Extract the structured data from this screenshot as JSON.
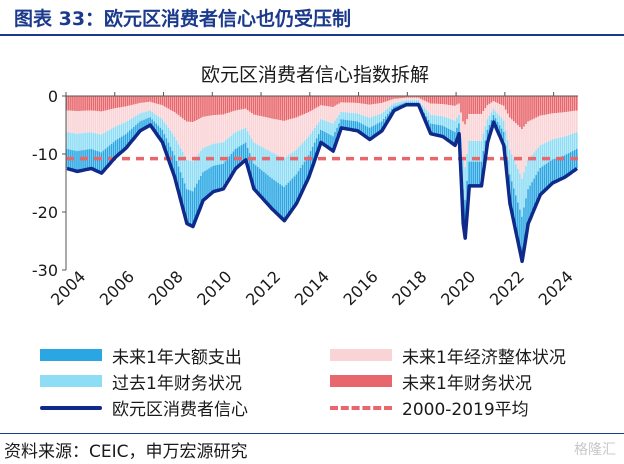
{
  "figure_title": "图表 33：欧元区消费者信心也仍受压制",
  "source": "资料来源：CEIC，申万宏源研究",
  "watermark": "格隆汇",
  "colors": {
    "big_purchase": "#2aa7e3",
    "past_financial": "#8fdcf5",
    "general_economy": "#f9d3d5",
    "future_financial": "#e8676c",
    "confidence": "#0f2a8a",
    "average": "#e8676c"
  },
  "chart_data": {
    "type": "bar",
    "title": "欧元区消费者信心指数拆解",
    "xlabel": "",
    "ylabel": "",
    "ylim": [
      -30,
      0
    ],
    "yticks": [
      0,
      -10,
      -20,
      -30
    ],
    "x_ticks": [
      "2004",
      "2006",
      "2008",
      "2010",
      "2012",
      "2014",
      "2016",
      "2018",
      "2020",
      "2022",
      "2024"
    ],
    "x_range": [
      "2004-01",
      "2024-12"
    ],
    "stacked": true,
    "series": [
      {
        "name": "未来1年大额支出",
        "type": "bar"
      },
      {
        "name": "过去1年财务状况",
        "type": "bar"
      },
      {
        "name": "未来1年经济整体状况",
        "type": "bar"
      },
      {
        "name": "未来1年财务状况",
        "type": "bar"
      },
      {
        "name": "欧元区消费者信心",
        "type": "line"
      },
      {
        "name": "2000-2019平均",
        "type": "line",
        "style": "dashed",
        "value": -10.8
      }
    ],
    "confidence_anchors": [
      [
        "2004-01",
        -12.5
      ],
      [
        "2004-06",
        -13.0
      ],
      [
        "2005-01",
        -12.5
      ],
      [
        "2005-06",
        -13.3
      ],
      [
        "2006-01",
        -10.5
      ],
      [
        "2006-06",
        -9.0
      ],
      [
        "2007-01",
        -6.0
      ],
      [
        "2007-06",
        -5.0
      ],
      [
        "2007-12",
        -8.0
      ],
      [
        "2008-06",
        -14.0
      ],
      [
        "2008-12",
        -22.0
      ],
      [
        "2009-03",
        -22.5
      ],
      [
        "2009-08",
        -18.0
      ],
      [
        "2010-01",
        -16.5
      ],
      [
        "2010-06",
        -16.0
      ],
      [
        "2010-12",
        -12.5
      ],
      [
        "2011-05",
        -11.0
      ],
      [
        "2011-09",
        -16.0
      ],
      [
        "2012-06",
        -19.5
      ],
      [
        "2012-12",
        -21.5
      ],
      [
        "2013-06",
        -18.5
      ],
      [
        "2013-12",
        -14.0
      ],
      [
        "2014-06",
        -8.0
      ],
      [
        "2014-12",
        -9.5
      ],
      [
        "2015-04",
        -5.5
      ],
      [
        "2015-12",
        -6.0
      ],
      [
        "2016-06",
        -7.5
      ],
      [
        "2016-12",
        -6.0
      ],
      [
        "2017-06",
        -2.5
      ],
      [
        "2017-12",
        -1.5
      ],
      [
        "2018-06",
        -1.5
      ],
      [
        "2018-12",
        -6.5
      ],
      [
        "2019-06",
        -7.0
      ],
      [
        "2019-12",
        -8.5
      ],
      [
        "2020-02",
        -6.5
      ],
      [
        "2020-04",
        -22.0
      ],
      [
        "2020-05",
        -24.5
      ],
      [
        "2020-07",
        -15.5
      ],
      [
        "2020-10",
        -15.5
      ],
      [
        "2021-01",
        -15.5
      ],
      [
        "2021-04",
        -8.0
      ],
      [
        "2021-07",
        -4.5
      ],
      [
        "2021-12",
        -8.5
      ],
      [
        "2022-03",
        -18.5
      ],
      [
        "2022-06",
        -23.5
      ],
      [
        "2022-09",
        -28.5
      ],
      [
        "2022-12",
        -22.0
      ],
      [
        "2023-06",
        -17.0
      ],
      [
        "2023-12",
        -15.0
      ],
      [
        "2024-06",
        -14.0
      ],
      [
        "2024-12",
        -12.5
      ]
    ],
    "component_shares": {
      "未来1年大额支出": 0.27,
      "过去1年财务状况": 0.23,
      "未来1年经济整体状况": 0.3,
      "未来1年财务状况": 0.2
    }
  },
  "legend": [
    {
      "label": "未来1年大额支出",
      "key": "big_purchase",
      "style": "bar"
    },
    {
      "label": "未来1年经济整体状况",
      "key": "general_economy",
      "style": "bar"
    },
    {
      "label": "过去1年财务状况",
      "key": "past_financial",
      "style": "bar"
    },
    {
      "label": "未来1年财务状况",
      "key": "future_financial",
      "style": "bar"
    },
    {
      "label": "欧元区消费者信心",
      "key": "confidence",
      "style": "line"
    },
    {
      "label": "2000-2019平均",
      "key": "average",
      "style": "dashed"
    }
  ]
}
